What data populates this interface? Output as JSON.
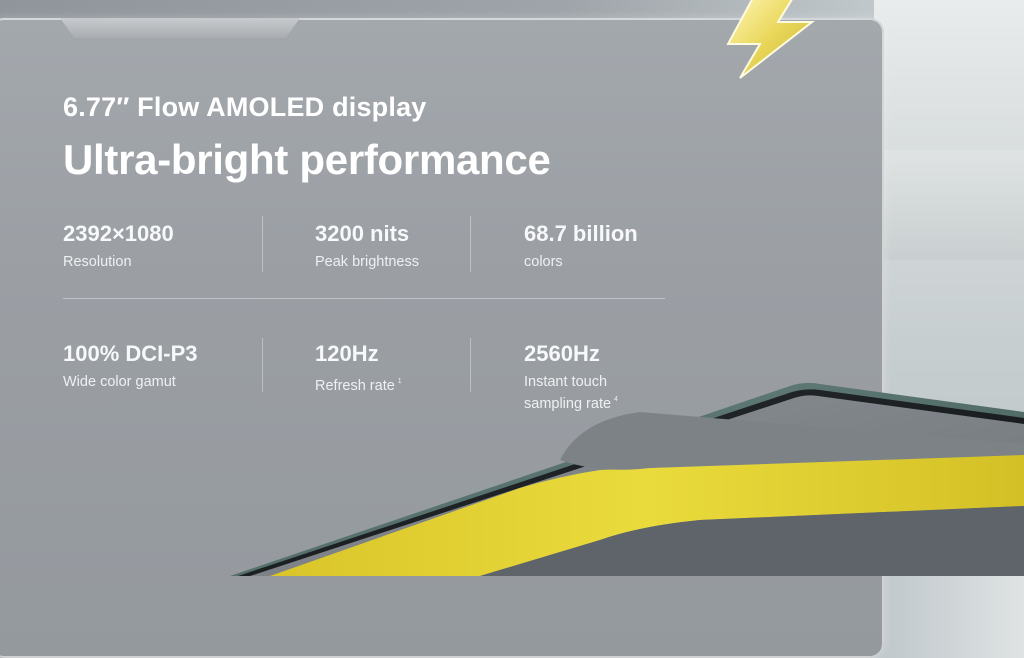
{
  "heading": {
    "subtitle": "6.77″ Flow AMOLED display",
    "title": "Ultra-bright performance"
  },
  "specs": [
    {
      "value": "2392×1080",
      "label": "Resolution"
    },
    {
      "value": "3200 nits",
      "label": "Peak brightness"
    },
    {
      "value": "68.7 billion",
      "label": "colors"
    },
    {
      "value": "100% DCI-P3",
      "label": "Wide color gamut"
    },
    {
      "value": "120Hz",
      "label": "Refresh rate",
      "note": "1"
    },
    {
      "value": "2560Hz",
      "label_line1": "Instant touch",
      "label_line2": "sampling rate",
      "note": "4"
    }
  ],
  "colors": {
    "accent_yellow": "#e2cf2c",
    "panel_gray": "#9b9fa4",
    "text": "#ffffff"
  },
  "icons": [
    "lightning-bolt-icon"
  ]
}
